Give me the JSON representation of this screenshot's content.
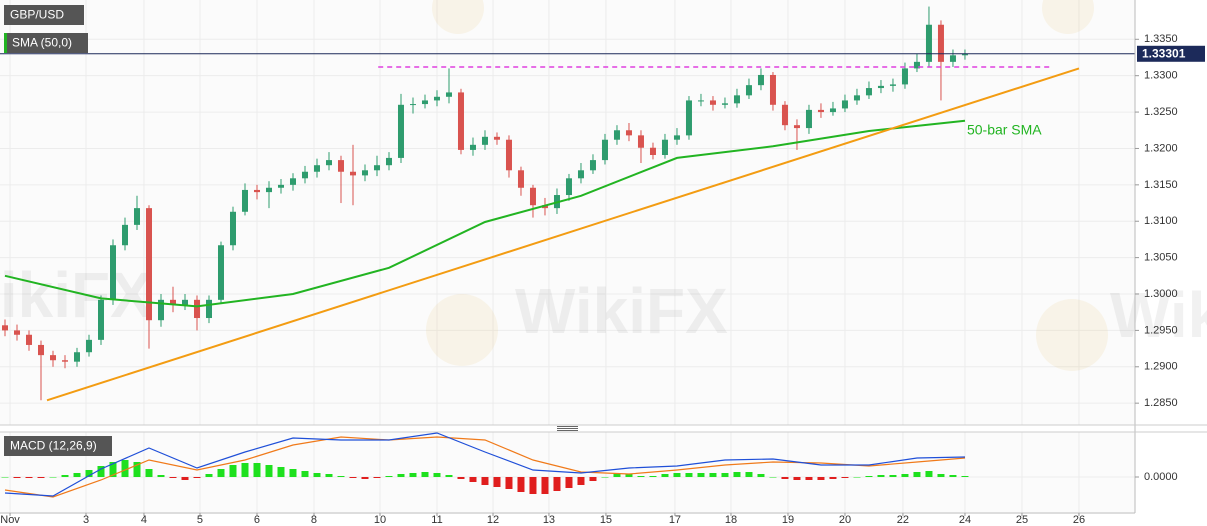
{
  "chart_data": [
    {
      "type": "candlestick",
      "title": "GBP/USD",
      "x": [
        0,
        1,
        2,
        3,
        4,
        5,
        6,
        7,
        8,
        9,
        10,
        11,
        12,
        13,
        14,
        15,
        16,
        17,
        18,
        19,
        20,
        21,
        22,
        23,
        24,
        25,
        26,
        27,
        28,
        29,
        30,
        31,
        32,
        33,
        34,
        35,
        36,
        37,
        38,
        39,
        40,
        41,
        42,
        43,
        44,
        45,
        46,
        47,
        48,
        49,
        50,
        51,
        52,
        53,
        54,
        55,
        56,
        57,
        58,
        59,
        60,
        61,
        62,
        63,
        64,
        65,
        66,
        67,
        68,
        69,
        70,
        71,
        72,
        73,
        74,
        75,
        76,
        77,
        78,
        79,
        80
      ],
      "open": [
        1.2957,
        1.295,
        1.2944,
        1.293,
        1.2916,
        1.2909,
        1.2907,
        1.292,
        1.2937,
        1.2992,
        1.3067,
        1.3095,
        1.3118,
        1.2964,
        1.2992,
        1.2985,
        1.2992,
        1.2967,
        1.2992,
        1.3067,
        1.3113,
        1.3143,
        1.314,
        1.3146,
        1.315,
        1.3159,
        1.3168,
        1.3177,
        1.3184,
        1.3168,
        1.3163,
        1.317,
        1.3177,
        1.3187,
        1.326,
        1.3261,
        1.3266,
        1.3271,
        1.3277,
        1.3198,
        1.3205,
        1.3216,
        1.3212,
        1.317,
        1.3146,
        1.3122,
        1.3118,
        1.3136,
        1.3159,
        1.317,
        1.3184,
        1.3212,
        1.3225,
        1.3218,
        1.3201,
        1.3191,
        1.3212,
        1.3218,
        1.3266,
        1.3266,
        1.326,
        1.3262,
        1.3273,
        1.3287,
        1.3301,
        1.326,
        1.3232,
        1.3228,
        1.3253,
        1.325,
        1.3255,
        1.3266,
        1.3273,
        1.3283,
        1.3286,
        1.3288,
        1.331,
        1.3319,
        1.337,
        1.3319,
        1.3328
      ],
      "high": [
        1.2965,
        1.2958,
        1.295,
        1.2936,
        1.2922,
        1.2916,
        1.2926,
        1.2944,
        1.2998,
        1.3075,
        1.3105,
        1.3135,
        1.3122,
        1.3,
        1.301,
        1.3,
        1.2998,
        1.2998,
        1.3072,
        1.312,
        1.3152,
        1.315,
        1.3155,
        1.3158,
        1.3166,
        1.3176,
        1.3186,
        1.3195,
        1.319,
        1.3205,
        1.3178,
        1.319,
        1.3195,
        1.3275,
        1.327,
        1.3274,
        1.328,
        1.331,
        1.3282,
        1.3215,
        1.3225,
        1.3222,
        1.3218,
        1.3175,
        1.315,
        1.3132,
        1.3145,
        1.3165,
        1.318,
        1.3192,
        1.322,
        1.3232,
        1.3235,
        1.3225,
        1.3208,
        1.322,
        1.3228,
        1.3272,
        1.3275,
        1.3272,
        1.327,
        1.3282,
        1.3296,
        1.331,
        1.3305,
        1.3265,
        1.324,
        1.326,
        1.3262,
        1.3264,
        1.3274,
        1.3282,
        1.3292,
        1.3294,
        1.3296,
        1.3318,
        1.333,
        1.3395,
        1.3376,
        1.3336,
        1.3336
      ],
      "low": [
        1.2942,
        1.2936,
        1.2922,
        1.2854,
        1.29,
        1.2898,
        1.29,
        1.2914,
        1.293,
        1.2985,
        1.306,
        1.3088,
        1.2925,
        1.2955,
        1.2975,
        1.2978,
        1.295,
        1.296,
        1.2988,
        1.306,
        1.3108,
        1.313,
        1.3118,
        1.3138,
        1.3142,
        1.3152,
        1.316,
        1.317,
        1.3125,
        1.3122,
        1.3155,
        1.3162,
        1.317,
        1.318,
        1.3248,
        1.3255,
        1.3258,
        1.3262,
        1.3192,
        1.319,
        1.3198,
        1.3205,
        1.316,
        1.3135,
        1.3105,
        1.3108,
        1.311,
        1.3128,
        1.3152,
        1.3165,
        1.3178,
        1.3205,
        1.321,
        1.318,
        1.3185,
        1.3186,
        1.3205,
        1.3212,
        1.3258,
        1.3252,
        1.3255,
        1.3256,
        1.3268,
        1.328,
        1.3252,
        1.3225,
        1.3198,
        1.322,
        1.3242,
        1.3245,
        1.325,
        1.326,
        1.3268,
        1.3276,
        1.3278,
        1.3282,
        1.3305,
        1.3312,
        1.3266,
        1.3312,
        1.3322
      ],
      "close": [
        1.295,
        1.2944,
        1.293,
        1.2916,
        1.2909,
        1.2907,
        1.292,
        1.2937,
        1.2992,
        1.3067,
        1.3095,
        1.3118,
        1.2964,
        1.2992,
        1.2985,
        1.2992,
        1.2967,
        1.2992,
        1.3067,
        1.3113,
        1.3143,
        1.314,
        1.3146,
        1.315,
        1.3159,
        1.3168,
        1.3177,
        1.3184,
        1.3168,
        1.3163,
        1.317,
        1.3177,
        1.3187,
        1.326,
        1.3261,
        1.3266,
        1.3271,
        1.3277,
        1.3198,
        1.3205,
        1.3216,
        1.3212,
        1.317,
        1.3146,
        1.3122,
        1.3118,
        1.3136,
        1.3159,
        1.317,
        1.3184,
        1.3212,
        1.3225,
        1.3218,
        1.3201,
        1.3191,
        1.3212,
        1.3218,
        1.3266,
        1.3266,
        1.326,
        1.3262,
        1.3273,
        1.3287,
        1.3301,
        1.326,
        1.3232,
        1.3228,
        1.3253,
        1.325,
        1.3255,
        1.3266,
        1.3273,
        1.3283,
        1.3286,
        1.3288,
        1.331,
        1.3319,
        1.337,
        1.3319,
        1.3328,
        1.333
      ],
      "up_color": "#2e9c6e",
      "down_color": "#d9534f",
      "sma": {
        "name": "SMA (50,0)",
        "label": "50-bar SMA",
        "color": "#22b422",
        "x": [
          0,
          8,
          16,
          24,
          32,
          40,
          48,
          56,
          64,
          72,
          80
        ],
        "values": [
          1.3025,
          1.2994,
          1.2983,
          1.3,
          1.3036,
          1.3099,
          1.3135,
          1.3187,
          1.3203,
          1.3224,
          1.3238
        ]
      },
      "trendline": {
        "color": "#f39c12",
        "x": [
          3.5,
          89.5
        ],
        "values": [
          1.2854,
          1.331
        ]
      },
      "resistance": {
        "color": "#e040e0",
        "x": [
          31.1,
          87.1
        ],
        "values": [
          1.3312,
          1.3312
        ]
      },
      "last_price": 1.33301,
      "ylim": [
        1.282,
        1.3404
      ],
      "yticks": [
        {
          "value": 1.335,
          "label": "1.3350"
        },
        {
          "value": 1.33,
          "label": "1.3300"
        },
        {
          "value": 1.325,
          "label": "1.3250"
        },
        {
          "value": 1.32,
          "label": "1.3200"
        },
        {
          "value": 1.315,
          "label": "1.3150"
        },
        {
          "value": 1.31,
          "label": "1.3100"
        },
        {
          "value": 1.305,
          "label": "1.3050"
        },
        {
          "value": 1.3,
          "label": "1.3000"
        },
        {
          "value": 1.295,
          "label": "1.2950"
        },
        {
          "value": 1.29,
          "label": "1.2900"
        },
        {
          "value": 1.285,
          "label": "1.2850"
        }
      ],
      "xlim": [
        -0.417,
        94.17
      ],
      "grid": true,
      "watermark": "WikiFX"
    },
    {
      "type": "macd",
      "title": "MACD (12,26,9)",
      "x": [
        0,
        1,
        2,
        3,
        4,
        5,
        6,
        7,
        8,
        9,
        10,
        11,
        12,
        13,
        14,
        15,
        16,
        17,
        18,
        19,
        20,
        21,
        22,
        23,
        24,
        25,
        26,
        27,
        28,
        29,
        30,
        31,
        32,
        33,
        34,
        35,
        36,
        37,
        38,
        39,
        40,
        41,
        42,
        43,
        44,
        45,
        46,
        47,
        48,
        49,
        50,
        51,
        52,
        53,
        54,
        55,
        56,
        57,
        58,
        59,
        60,
        61,
        62,
        63,
        64,
        65,
        66,
        67,
        68,
        69,
        70,
        71,
        72,
        73,
        74,
        75,
        76,
        77,
        78,
        79,
        80
      ],
      "histogram": [
        0,
        -0.0001,
        -0.0001,
        -0.0001,
        0,
        0.0002,
        0.0004,
        0.0007,
        0.0011,
        0.0015,
        0.0017,
        0.0015,
        0.0008,
        0.0002,
        -0.0001,
        -0.0003,
        -0.0001,
        0.0003,
        0.0008,
        0.0012,
        0.0014,
        0.0014,
        0.0012,
        0.001,
        0.0008,
        0.0006,
        0.0004,
        0.0003,
        0.0001,
        -0.0001,
        -0.0002,
        -0.0001,
        0.0001,
        0.0003,
        0.0004,
        0.0005,
        0.0004,
        0.0002,
        -0.0002,
        -0.0005,
        -0.0008,
        -0.001,
        -0.0012,
        -0.0015,
        -0.0017,
        -0.0017,
        -0.0014,
        -0.0011,
        -0.0008,
        -0.0004,
        0,
        0.0003,
        0.0003,
        0.0001,
        0.0001,
        0.0003,
        0.0004,
        0.0004,
        0.0004,
        0.0004,
        0.0004,
        0.0005,
        0.0005,
        0.0003,
        0,
        -0.0002,
        -0.0003,
        -0.0003,
        -0.0003,
        -0.0002,
        -0.0001,
        0,
        0.0001,
        0.0002,
        0.0002,
        0.0003,
        0.0005,
        0.0006,
        0.0003,
        0.0002,
        0.0001
      ],
      "up_color": "#1ee01e",
      "down_color": "#e01e1e",
      "macd": {
        "color": "#1f4fd8",
        "x": [
          0,
          4,
          8,
          12,
          16,
          20,
          24,
          28,
          32,
          36,
          40,
          44,
          48,
          52,
          56,
          60,
          64,
          68,
          72,
          76,
          80
        ],
        "values": [
          -0.0016,
          -0.0019,
          0.0008,
          0.0029,
          0.0009,
          0.0025,
          0.0039,
          0.0037,
          0.0037,
          0.0044,
          0.0025,
          0.0007,
          0.0004,
          0.0009,
          0.0011,
          0.0017,
          0.0018,
          0.0012,
          0.0012,
          0.0019,
          0.002
        ]
      },
      "signal": {
        "color": "#f07a1a",
        "x": [
          0,
          4,
          8,
          12,
          16,
          20,
          24,
          28,
          32,
          36,
          40,
          44,
          48,
          52,
          56,
          60,
          64,
          68,
          72,
          76,
          80
        ],
        "values": [
          -0.0013,
          -0.002,
          -0.0003,
          0.0017,
          0.0007,
          0.0017,
          0.0032,
          0.004,
          0.0037,
          0.004,
          0.0037,
          0.0017,
          0.0005,
          0.0003,
          0.0007,
          0.0012,
          0.0015,
          0.0014,
          0.0011,
          0.0015,
          0.0019
        ]
      },
      "ylim": [
        -0.0036,
        0.0045
      ],
      "yticks": [
        {
          "value": 0,
          "label": "0.0000"
        }
      ],
      "xlim": [
        -0.417,
        94.17
      ],
      "xticks": [
        {
          "value": 0.42,
          "label": "Nov"
        },
        {
          "value": 6.75,
          "label": "3"
        },
        {
          "value": 11.58,
          "label": "4"
        },
        {
          "value": 16.25,
          "label": "5"
        },
        {
          "value": 21,
          "label": "6"
        },
        {
          "value": 25.75,
          "label": "8"
        },
        {
          "value": 31.25,
          "label": "10"
        },
        {
          "value": 36,
          "label": "11"
        },
        {
          "value": 40.67,
          "label": "12"
        },
        {
          "value": 45.33,
          "label": "13"
        },
        {
          "value": 50.08,
          "label": "15"
        },
        {
          "value": 55.83,
          "label": "17"
        },
        {
          "value": 60.5,
          "label": "18"
        },
        {
          "value": 65.25,
          "label": "19"
        },
        {
          "value": 70,
          "label": "20"
        },
        {
          "value": 74.83,
          "label": "22"
        },
        {
          "value": 80,
          "label": "24"
        },
        {
          "value": 84.75,
          "label": "25"
        },
        {
          "value": 89.5,
          "label": "26"
        }
      ]
    }
  ]
}
